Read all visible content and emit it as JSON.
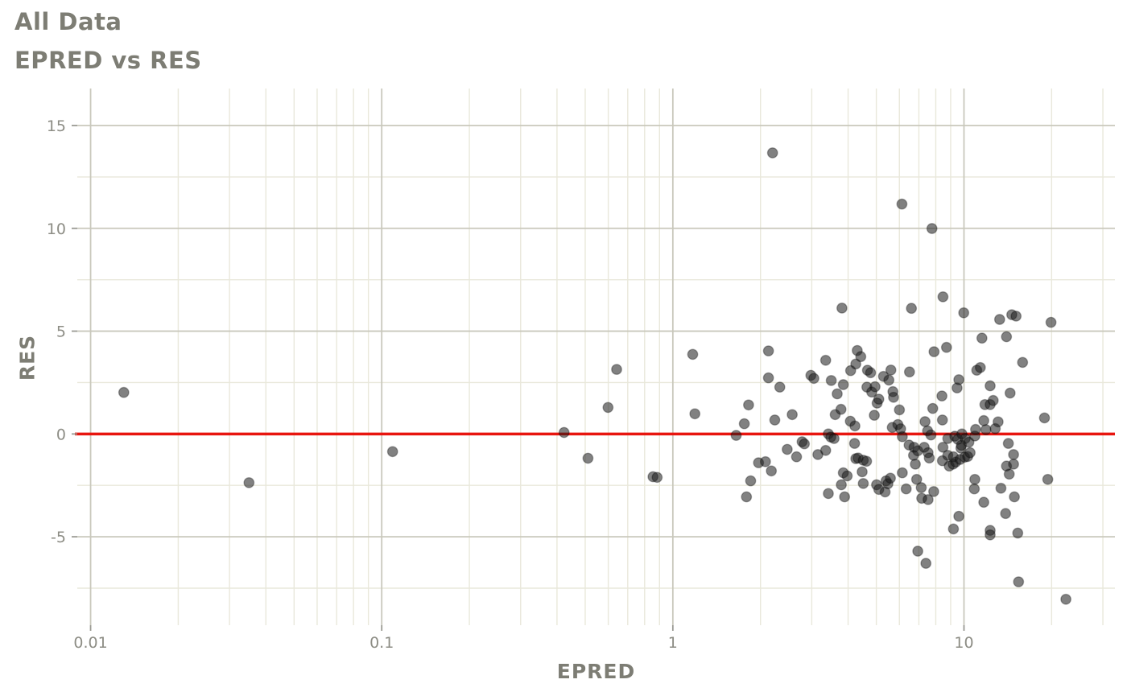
{
  "header": {
    "title": "All Data",
    "subtitle": "EPRED vs RES"
  },
  "chart_data": {
    "type": "scatter",
    "title": "All Data",
    "subtitle": "EPRED vs RES",
    "xlabel": "EPRED",
    "ylabel": "RES",
    "x_scale": "log10",
    "x_domain": [
      0.009,
      33
    ],
    "y_domain": [
      -9.3,
      16.8
    ],
    "x_ticks": [
      0.01,
      0.1,
      1,
      10
    ],
    "x_tick_labels": [
      "0.01",
      "0.1",
      "1",
      "10"
    ],
    "y_ticks": [
      -5,
      0,
      5,
      10,
      15
    ],
    "y_tick_labels": [
      "-5",
      "0",
      "5",
      "10",
      "15"
    ],
    "y_minor": [
      -7.5,
      -2.5,
      2.5,
      7.5,
      12.5
    ],
    "grid": true,
    "legend": "none",
    "reference_line": {
      "y": 0,
      "color": "#e8150f",
      "width": 3.5
    },
    "point_style": {
      "radius": 6.2,
      "fill": "#1a1a1a",
      "fill_opacity": 0.55,
      "stroke": "#000000",
      "stroke_opacity": 0.3
    },
    "colors": {
      "background": "#ffffff",
      "grid_major": "#c9c8bc",
      "grid_minor": "#e9e8db",
      "tick_mark": "#9a9a93",
      "tick_text": "#8d8d85",
      "title_text": "#7d7d74"
    },
    "points": [
      [
        0.013,
        2.02
      ],
      [
        0.035,
        -2.37
      ],
      [
        0.109,
        -0.86
      ],
      [
        0.423,
        0.07
      ],
      [
        0.511,
        -1.18
      ],
      [
        0.599,
        1.29
      ],
      [
        0.641,
        3.14
      ],
      [
        0.855,
        -2.08
      ],
      [
        0.883,
        -2.11
      ],
      [
        1.17,
        3.87
      ],
      [
        1.19,
        0.98
      ],
      [
        1.65,
        -0.07
      ],
      [
        1.76,
        0.5
      ],
      [
        1.79,
        -3.06
      ],
      [
        1.82,
        1.41
      ],
      [
        1.85,
        -2.28
      ],
      [
        1.97,
        -1.4
      ],
      [
        2.08,
        -1.35
      ],
      [
        2.13,
        4.04
      ],
      [
        2.13,
        2.73
      ],
      [
        2.18,
        -1.8
      ],
      [
        2.2,
        13.67
      ],
      [
        2.24,
        0.68
      ],
      [
        2.33,
        2.28
      ],
      [
        2.47,
        -0.75
      ],
      [
        2.57,
        0.94
      ],
      [
        2.66,
        -1.11
      ],
      [
        2.78,
        -0.38
      ],
      [
        2.83,
        -0.48
      ],
      [
        2.98,
        2.85
      ],
      [
        3.05,
        2.7
      ],
      [
        3.15,
        -1.0
      ],
      [
        3.35,
        3.58
      ],
      [
        3.35,
        -0.8
      ],
      [
        3.42,
        0.0
      ],
      [
        3.42,
        -2.9
      ],
      [
        3.49,
        -0.15
      ],
      [
        3.5,
        2.6
      ],
      [
        3.58,
        -0.22
      ],
      [
        3.61,
        0.94
      ],
      [
        3.67,
        1.95
      ],
      [
        3.78,
        1.2
      ],
      [
        3.79,
        -2.47
      ],
      [
        3.81,
        6.12
      ],
      [
        3.85,
        2.4
      ],
      [
        3.85,
        -1.89
      ],
      [
        3.89,
        -3.06
      ],
      [
        3.97,
        -2.04
      ],
      [
        4.07,
        0.62
      ],
      [
        4.08,
        3.08
      ],
      [
        4.21,
        -0.46
      ],
      [
        4.22,
        0.39
      ],
      [
        4.25,
        3.4
      ],
      [
        4.25,
        -1.2
      ],
      [
        4.3,
        4.06
      ],
      [
        4.33,
        -1.17
      ],
      [
        4.42,
        3.76
      ],
      [
        4.47,
        -1.84
      ],
      [
        4.51,
        -1.28
      ],
      [
        4.51,
        -2.41
      ],
      [
        4.63,
        -1.33
      ],
      [
        4.64,
        2.28
      ],
      [
        4.66,
        3.1
      ],
      [
        4.78,
        2.98
      ],
      [
        4.82,
        2.04
      ],
      [
        4.92,
        0.91
      ],
      [
        4.95,
        2.3
      ],
      [
        5.01,
        -2.47
      ],
      [
        5.03,
        1.5
      ],
      [
        5.1,
        1.69
      ],
      [
        5.1,
        -2.7
      ],
      [
        5.29,
        2.8
      ],
      [
        5.36,
        -2.82
      ],
      [
        5.4,
        -2.28
      ],
      [
        5.48,
        -2.42
      ],
      [
        5.52,
        2.62
      ],
      [
        5.59,
        -2.15
      ],
      [
        5.61,
        3.11
      ],
      [
        5.67,
        0.32
      ],
      [
        5.7,
        2.06
      ],
      [
        5.73,
        1.78
      ],
      [
        5.93,
        0.46
      ],
      [
        6.0,
        1.17
      ],
      [
        6.06,
        0.25
      ],
      [
        6.12,
        11.18
      ],
      [
        6.14,
        -0.13
      ],
      [
        6.14,
        -1.89
      ],
      [
        6.33,
        -2.67
      ],
      [
        6.48,
        -0.54
      ],
      [
        6.5,
        3.02
      ],
      [
        6.6,
        6.11
      ],
      [
        6.71,
        -1.04
      ],
      [
        6.74,
        -0.65
      ],
      [
        6.81,
        -1.47
      ],
      [
        6.88,
        -2.21
      ],
      [
        6.94,
        -0.82
      ],
      [
        6.94,
        -5.7
      ],
      [
        7.13,
        -2.61
      ],
      [
        7.16,
        -3.13
      ],
      [
        7.3,
        -0.65
      ],
      [
        7.35,
        0.6
      ],
      [
        7.4,
        -6.29
      ],
      [
        7.5,
        0.15
      ],
      [
        7.53,
        -0.91
      ],
      [
        7.53,
        -3.19
      ],
      [
        7.6,
        -1.17
      ],
      [
        7.7,
        -0.05
      ],
      [
        7.76,
        9.99
      ],
      [
        7.81,
        1.24
      ],
      [
        7.87,
        -2.8
      ],
      [
        7.89,
        4.0
      ],
      [
        8.4,
        1.85
      ],
      [
        8.43,
        0.68
      ],
      [
        8.43,
        -1.3
      ],
      [
        8.47,
        6.67
      ],
      [
        8.47,
        -0.65
      ],
      [
        8.71,
        4.21
      ],
      [
        8.8,
        -0.22
      ],
      [
        8.8,
        -1.04
      ],
      [
        8.9,
        -1.56
      ],
      [
        9.18,
        -1.47
      ],
      [
        9.2,
        -1.11
      ],
      [
        9.2,
        -4.62
      ],
      [
        9.3,
        -0.11
      ],
      [
        9.37,
        -1.37
      ],
      [
        9.47,
        2.24
      ],
      [
        9.52,
        -0.26
      ],
      [
        9.6,
        2.64
      ],
      [
        9.6,
        -4.0
      ],
      [
        9.7,
        -1.24
      ],
      [
        9.76,
        -0.69
      ],
      [
        9.8,
        -0.55
      ],
      [
        9.84,
        0.0
      ],
      [
        9.98,
        5.89
      ],
      [
        10.05,
        -1.13
      ],
      [
        10.1,
        -0.22
      ],
      [
        10.3,
        -1.1
      ],
      [
        10.4,
        -0.4
      ],
      [
        10.5,
        -0.91
      ],
      [
        10.85,
        -2.67
      ],
      [
        10.9,
        -0.1
      ],
      [
        10.9,
        -2.21
      ],
      [
        10.96,
        0.22
      ],
      [
        11.07,
        3.1
      ],
      [
        11.38,
        3.23
      ],
      [
        11.53,
        4.66
      ],
      [
        11.7,
        0.65
      ],
      [
        11.7,
        -3.32
      ],
      [
        11.8,
        1.43
      ],
      [
        11.9,
        0.21
      ],
      [
        12.3,
        2.34
      ],
      [
        12.3,
        1.43
      ],
      [
        12.3,
        -4.69
      ],
      [
        12.3,
        -4.91
      ],
      [
        12.6,
        1.63
      ],
      [
        12.8,
        0.26
      ],
      [
        13.1,
        0.59
      ],
      [
        13.26,
        5.57
      ],
      [
        13.4,
        -2.64
      ],
      [
        13.9,
        -3.87
      ],
      [
        14.0,
        4.73
      ],
      [
        14.0,
        -1.56
      ],
      [
        14.2,
        -0.46
      ],
      [
        14.3,
        -1.95
      ],
      [
        14.4,
        1.99
      ],
      [
        14.6,
        5.8
      ],
      [
        14.8,
        -1.47
      ],
      [
        14.8,
        -1.0
      ],
      [
        14.9,
        -3.06
      ],
      [
        15.1,
        5.73
      ],
      [
        15.3,
        -4.82
      ],
      [
        15.4,
        -7.19
      ],
      [
        15.9,
        3.48
      ],
      [
        18.9,
        0.78
      ],
      [
        19.4,
        -2.21
      ],
      [
        19.9,
        5.43
      ],
      [
        22.4,
        -8.04
      ]
    ]
  }
}
